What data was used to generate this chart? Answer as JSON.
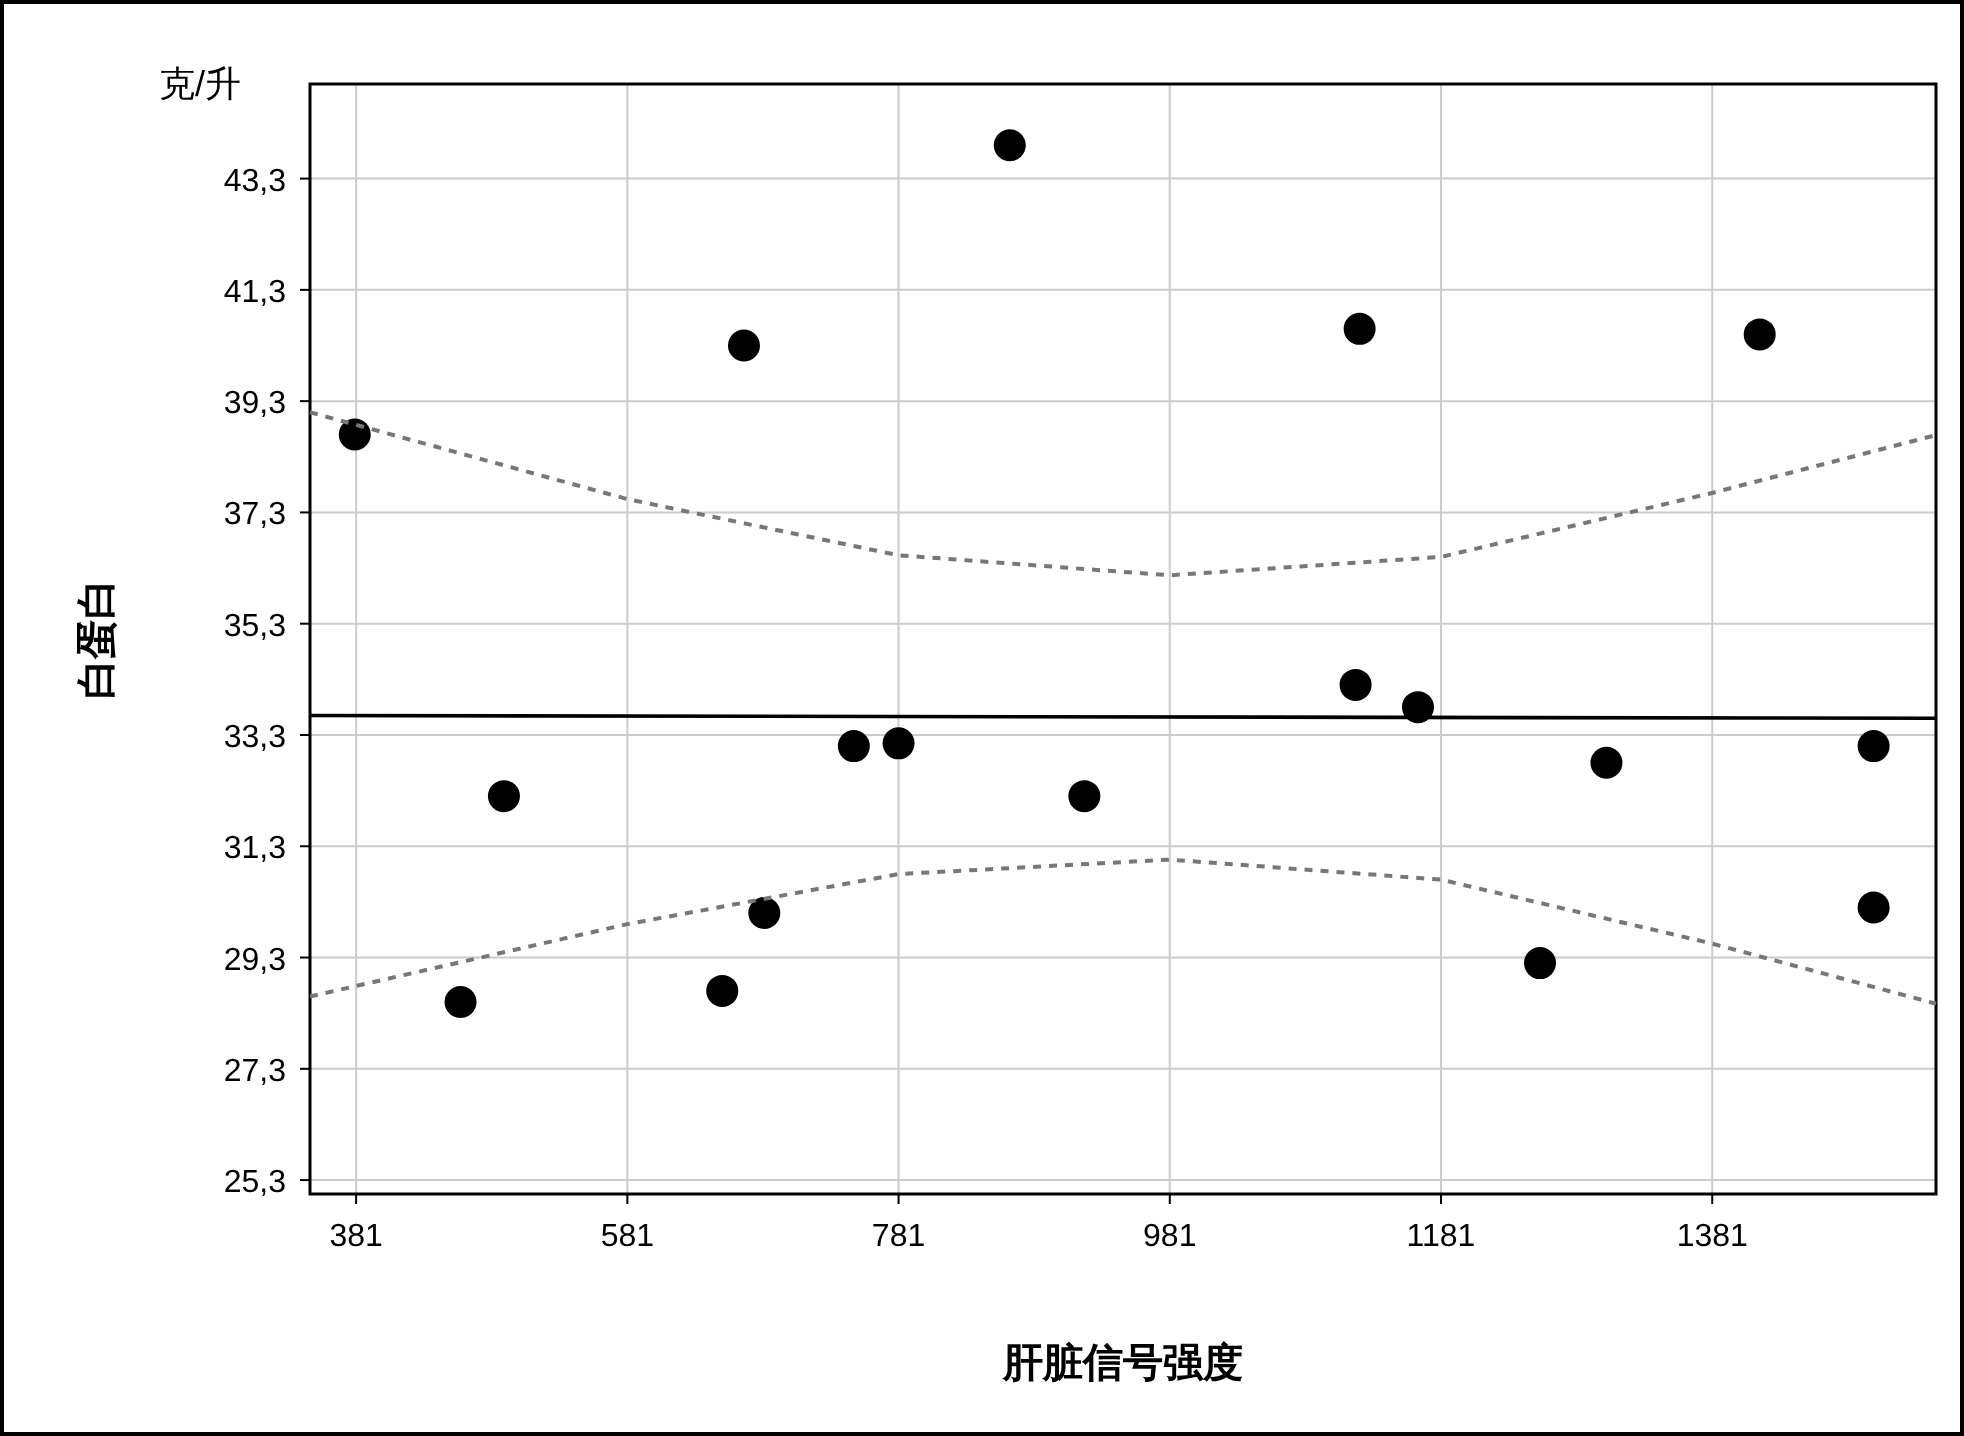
{
  "chart_data": {
    "type": "scatter",
    "xlabel": "肝脏信号强度",
    "ylabel": "白蛋白",
    "annotations": [
      "克/升"
    ],
    "xlim": [
      347,
      1546
    ],
    "ylim": [
      25.05,
      45
    ],
    "xticks": [
      381,
      581,
      781,
      981,
      1181,
      1381
    ],
    "yticks": [
      {
        "value": 25.3,
        "label": "25,3"
      },
      {
        "value": 27.3,
        "label": "27,3"
      },
      {
        "value": 29.3,
        "label": "29,3"
      },
      {
        "value": 31.3,
        "label": "31,3"
      },
      {
        "value": 33.3,
        "label": "33,3"
      },
      {
        "value": 35.3,
        "label": "35,3"
      },
      {
        "value": 37.3,
        "label": "37,3"
      },
      {
        "value": 39.3,
        "label": "39,3"
      },
      {
        "value": 41.3,
        "label": "41,3"
      },
      {
        "value": 43.3,
        "label": "43,3"
      }
    ],
    "grid": true,
    "series": [
      {
        "marker": "circle",
        "color": "#000000",
        "x": [
          380,
          458,
          490,
          651,
          667,
          682,
          748,
          781,
          863,
          918,
          1118,
          1121,
          1164,
          1254,
          1303,
          1416,
          1500,
          1500
        ],
        "values": [
          38.7,
          28.5,
          32.2,
          28.7,
          40.3,
          30.1,
          33.1,
          33.15,
          43.9,
          32.2,
          34.2,
          40.6,
          33.8,
          29.2,
          32.8,
          40.5,
          33.1,
          30.2
        ]
      },
      {
        "type": "line",
        "line_style": "solid",
        "color": "#000000",
        "x": [
          347,
          1546
        ],
        "values": [
          33.65,
          33.6
        ]
      },
      {
        "type": "line",
        "line_style": "dashed",
        "color": "#777777",
        "x": [
          347,
          581,
          781,
          981,
          1181,
          1381,
          1546
        ],
        "values": [
          39.1,
          37.54,
          36.53,
          36.17,
          36.5,
          37.65,
          38.69
        ]
      },
      {
        "type": "line",
        "line_style": "dashed",
        "color": "#777777",
        "x": [
          347,
          581,
          781,
          981,
          1181,
          1381,
          1546
        ],
        "values": [
          28.6,
          29.9,
          30.8,
          31.06,
          30.7,
          29.55,
          28.47
        ]
      }
    ]
  }
}
